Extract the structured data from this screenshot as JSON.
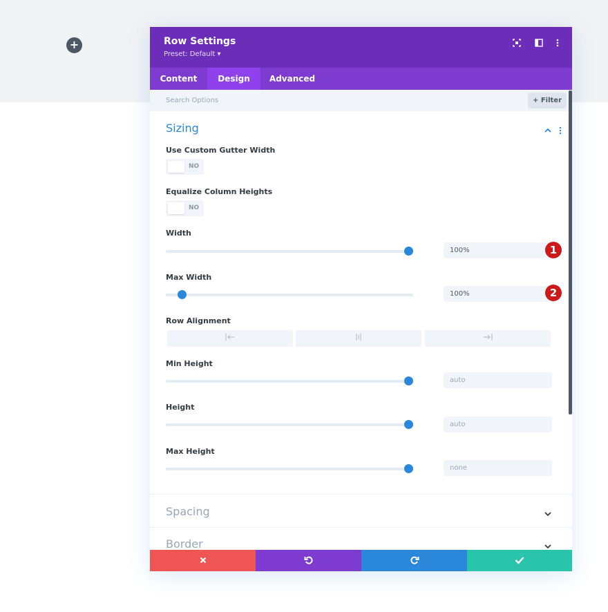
{
  "background": {
    "add_icon": "plus-icon"
  },
  "modal": {
    "title": "Row Settings",
    "preset": "Preset: Default ▾",
    "header_icons": [
      "fullscreen-icon",
      "split-view-icon",
      "more-options-icon"
    ],
    "colors": {
      "header": "#6c2eb9",
      "tabs": "#7e3bd0",
      "active_tab": "#8f42ec",
      "accent": "#2b87da"
    }
  },
  "tabs": [
    {
      "label": "Content",
      "active": false
    },
    {
      "label": "Design",
      "active": true
    },
    {
      "label": "Advanced",
      "active": false
    }
  ],
  "search": {
    "placeholder": "Search Options",
    "filter_label": "Filter"
  },
  "sizing": {
    "title": "Sizing",
    "use_custom_gutter": {
      "label": "Use Custom Gutter Width",
      "value": "NO"
    },
    "equalize_column_heights": {
      "label": "Equalize Column Heights",
      "value": "NO"
    },
    "width": {
      "label": "Width",
      "value": "100%",
      "slider_fraction": 1.0,
      "badge": "1"
    },
    "max_width": {
      "label": "Max Width",
      "value": "100%",
      "slider_fraction": 0.05,
      "badge": "2"
    },
    "row_alignment": {
      "label": "Row Alignment",
      "options": [
        "left-align-icon",
        "center-align-icon",
        "right-align-icon"
      ]
    },
    "min_height": {
      "label": "Min Height",
      "value": "auto",
      "slider_fraction": 1.0
    },
    "height": {
      "label": "Height",
      "value": "auto",
      "slider_fraction": 1.0
    },
    "max_height": {
      "label": "Max Height",
      "value": "none",
      "slider_fraction": 1.0
    }
  },
  "sections_collapsed": [
    {
      "title": "Spacing"
    },
    {
      "title": "Border"
    }
  ],
  "footer": {
    "buttons": [
      {
        "name": "discard",
        "icon": "close-icon",
        "color": "#ef5555"
      },
      {
        "name": "undo",
        "icon": "undo-icon",
        "color": "#7e3bd0"
      },
      {
        "name": "redo",
        "icon": "redo-icon",
        "color": "#2b87da"
      },
      {
        "name": "save",
        "icon": "check-icon",
        "color": "#29c4a9"
      }
    ]
  }
}
